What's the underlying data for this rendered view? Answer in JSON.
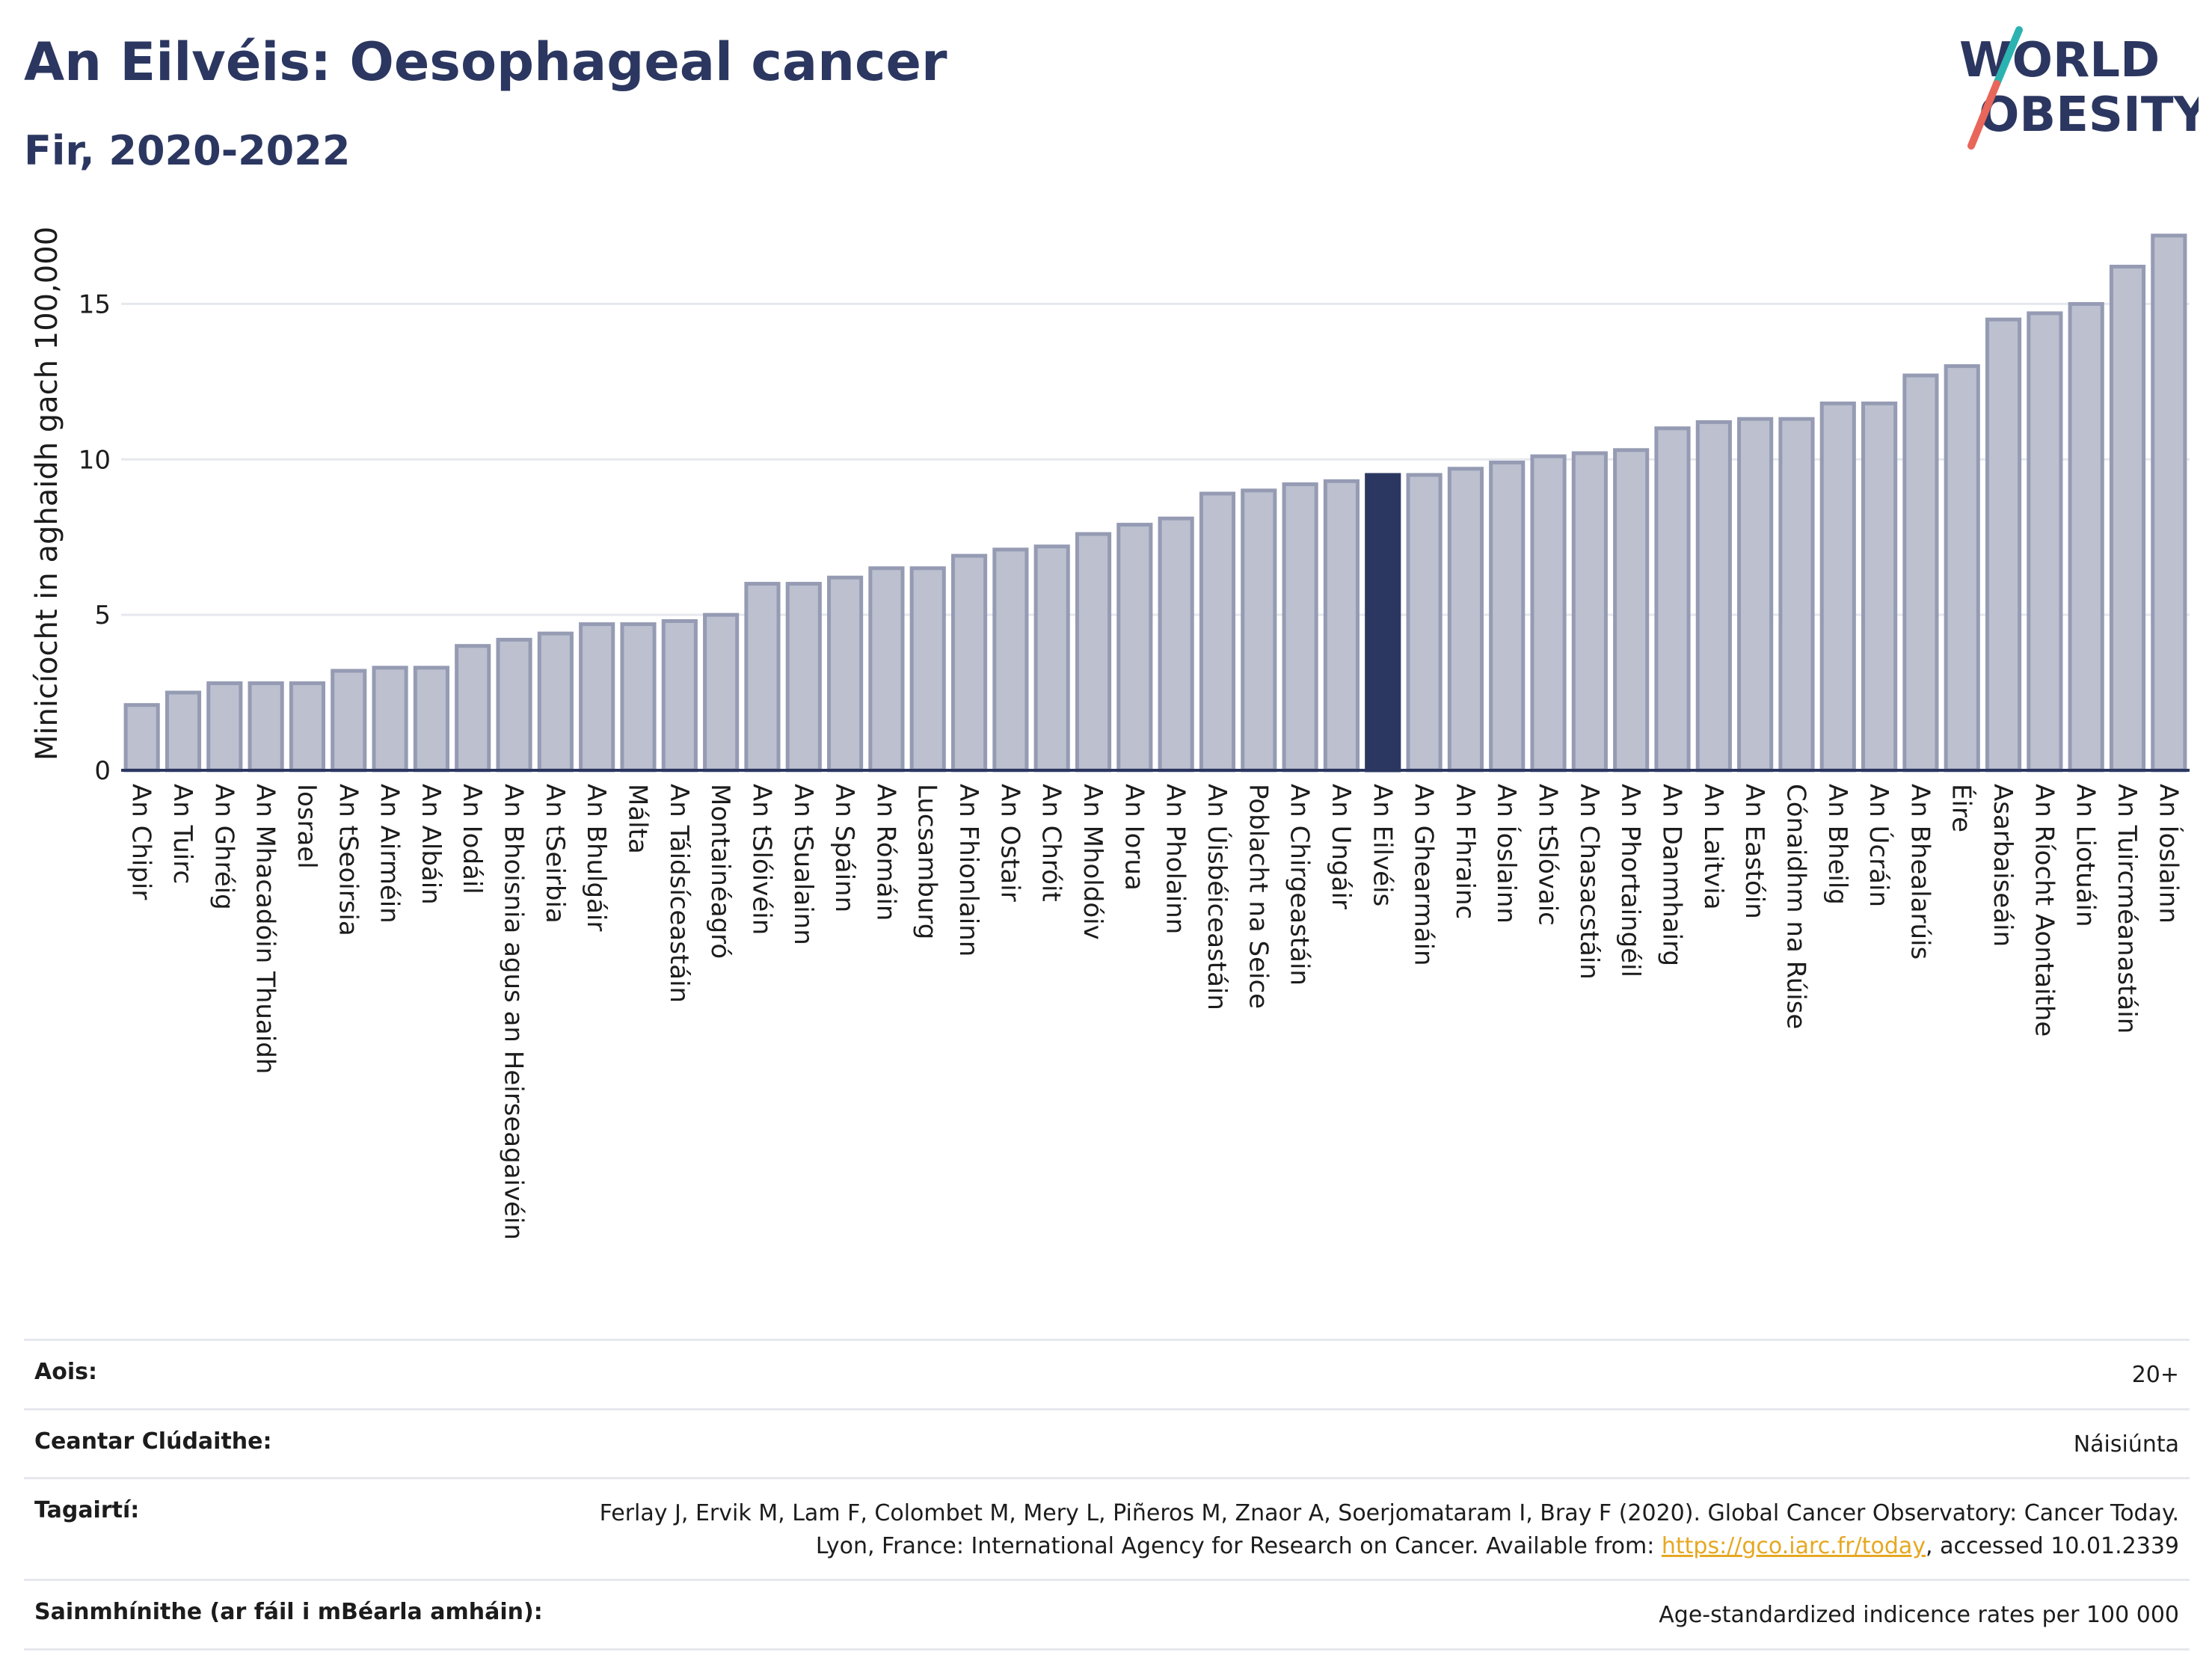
{
  "header": {
    "title": "An Eilvéis: Oesophageal cancer",
    "subtitle": "Fir, 2020-2022"
  },
  "logo": {
    "line1": "WORLD",
    "line2": "OBESITY",
    "accent_colors": [
      "#2bb3b1",
      "#e8665a"
    ]
  },
  "chart_data": {
    "type": "bar",
    "title": "An Eilvéis: Oesophageal cancer",
    "subtitle": "Fir, 2020-2022",
    "ylabel": "Minicíocht in aghaidh gach 100,000",
    "xlabel": "",
    "ylim": [
      0,
      17.8
    ],
    "yticks": [
      0,
      5,
      10,
      15
    ],
    "grid": true,
    "highlight": "An Eilvéis",
    "colors": {
      "bar": "#bcc0cf",
      "bar_edge": "#959bb3",
      "highlight": "#2b3760",
      "grid": "#e6e8ee",
      "axis": "#2b3760"
    },
    "categories": [
      "An Chipir",
      "An Tuirc",
      "An Ghréig",
      "An Mhacadóin Thuaidh",
      "Iosrael",
      "An tSeoirsia",
      "An Airméin",
      "An Albáin",
      "An Iodáil",
      "An Bhoisnia agus an Heirseagaivéin",
      "An tSeirbia",
      "An Bhulgáir",
      "Málta",
      "An Táidsíceastáin",
      "Montainéagró",
      "An tSlóivéin",
      "An tSualainn",
      "An Spáinn",
      "An Rómáin",
      "Lucsamburg",
      "An Fhionlainn",
      "An Ostair",
      "An Chróit",
      "An Mholdóiv",
      "An Iorua",
      "An Pholainn",
      "An Úisbéiceastáin",
      "Poblacht na Seice",
      "An Chirgeastáin",
      "An Ungáir",
      "An Eilvéis",
      "An Ghearmáin",
      "An Fhrainc",
      "An Íoslainn",
      "An tSlóvaic",
      "An Chasacstáin",
      "An Phortaingéil",
      "An Danmhairg",
      "An Laitvia",
      "An Eastóin",
      "Cónaidhm na Rúise",
      "An Bheilg",
      "An Úcráin",
      "An Bhealarúis",
      "Éire",
      "Asarbaiseáin",
      "An Ríocht Aontaithe",
      "An Liotuáin",
      "An Tuircméanastáin",
      "An Íoslainn "
    ],
    "values": [
      2.1,
      2.5,
      2.8,
      2.8,
      2.8,
      3.2,
      3.3,
      3.3,
      4.0,
      4.2,
      4.4,
      4.7,
      4.7,
      4.8,
      5.0,
      6.0,
      6.0,
      6.2,
      6.5,
      6.5,
      6.9,
      7.1,
      7.2,
      7.6,
      7.9,
      8.1,
      8.9,
      9.0,
      9.2,
      9.3,
      9.5,
      9.5,
      9.7,
      9.9,
      10.1,
      10.2,
      10.3,
      11.0,
      11.2,
      11.3,
      11.3,
      11.8,
      11.8,
      12.7,
      13.0,
      14.5,
      14.7,
      15.0,
      16.2,
      17.2
    ]
  },
  "meta": {
    "rows": [
      {
        "label": "Aois:",
        "value": "20+"
      },
      {
        "label": "Ceantar Clúdaithe:",
        "value": "Náisiúnta"
      },
      {
        "label": "Tagairtí:",
        "value_pre": "Ferlay J, Ervik M, Lam F, Colombet M, Mery L, Piñeros M, Znaor A, Soerjomataram I, Bray F (2020). Global Cancer Observatory: Cancer Today. Lyon, France: International Agency for Research on Cancer. Available from: ",
        "link": "https://gco.iarc.fr/today",
        "value_post": ", accessed 10.01.2339"
      },
      {
        "label": "Sainmhínithe (ar fáil i mBéarla amháin):",
        "value": "Age-standardized indicence rates per 100 000"
      }
    ]
  }
}
